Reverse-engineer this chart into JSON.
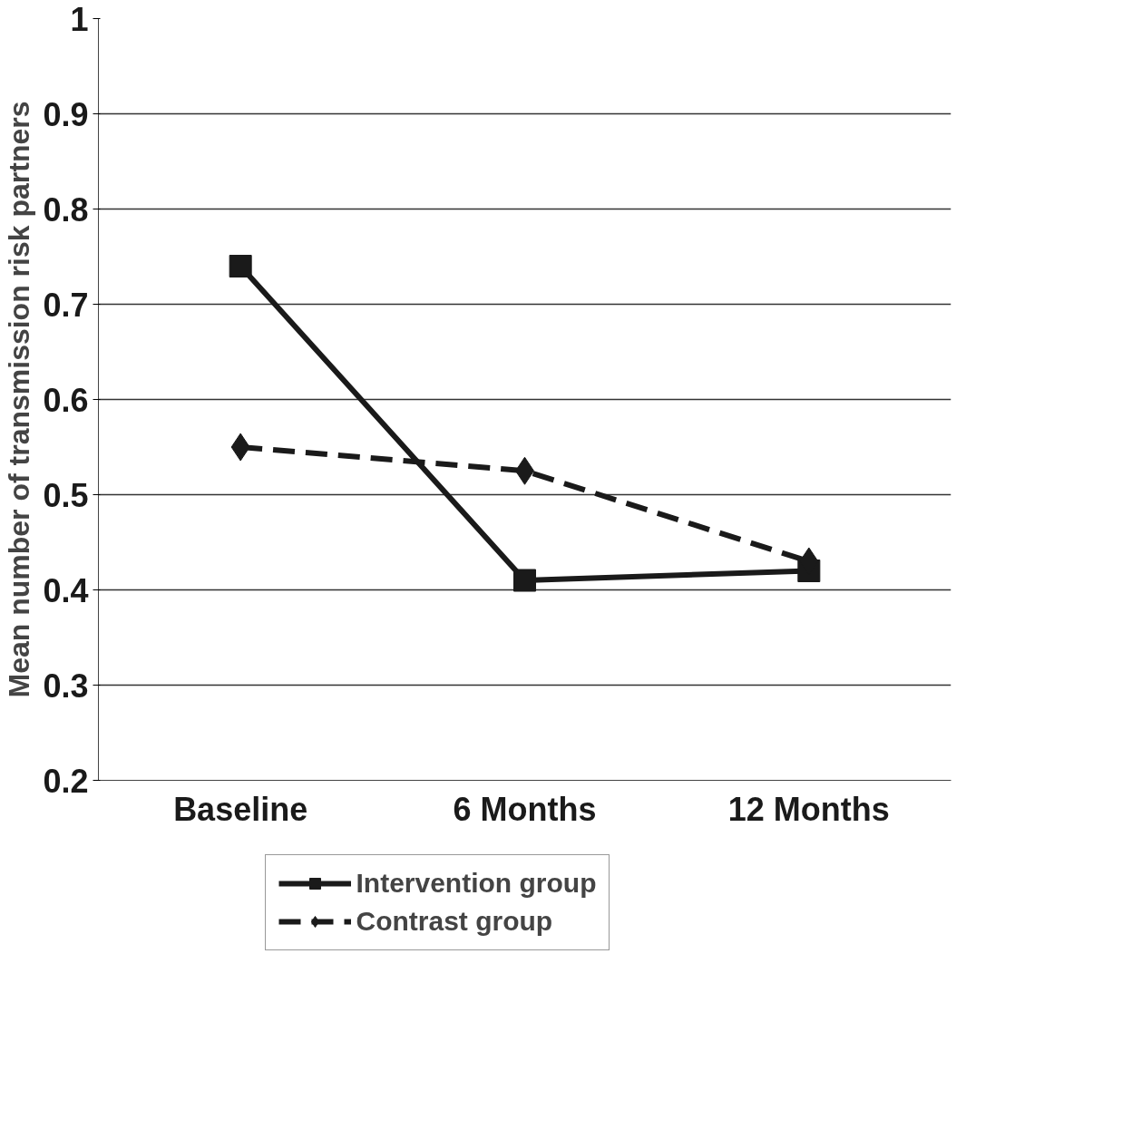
{
  "chart_data": {
    "type": "line",
    "ylabel": "Mean number of transmission risk partners",
    "categories": [
      "Baseline",
      "6 Months",
      "12 Months"
    ],
    "series": [
      {
        "name": "Intervention group",
        "color": "#1a1a1a",
        "values": [
          0.74,
          0.41,
          0.42
        ],
        "marker": "square",
        "line_style": "solid"
      },
      {
        "name": "Contrast group",
        "color": "#1a1a1a",
        "values": [
          0.55,
          0.525,
          0.43
        ],
        "marker": "diamond",
        "line_style": "dashed"
      }
    ],
    "ylim": [
      0.2,
      1
    ],
    "yticks": [
      0.2,
      0.3,
      0.4,
      0.5,
      0.6,
      0.7,
      0.8,
      0.9,
      1
    ],
    "grid": "y",
    "legend": "bottom"
  }
}
